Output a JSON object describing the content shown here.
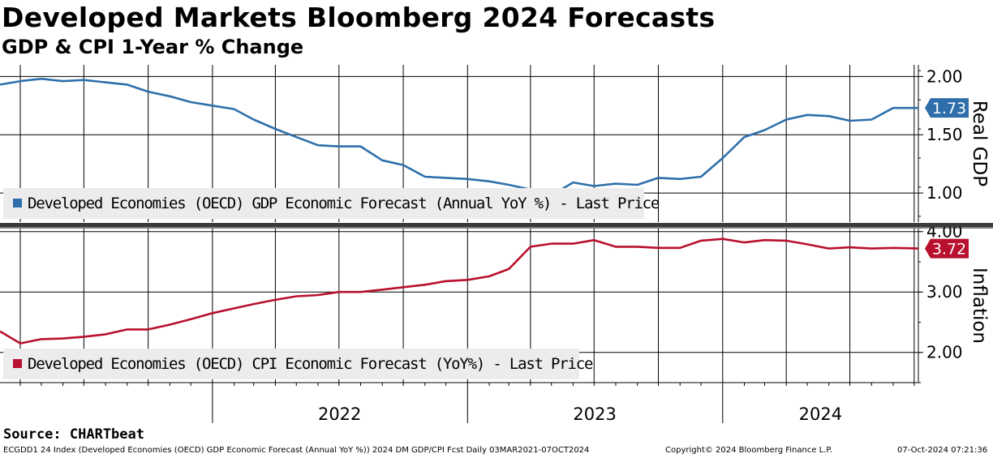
{
  "header": {
    "title": "Developed Markets Bloomberg 2024 Forecasts",
    "subtitle": "GDP & CPI 1-Year % Change"
  },
  "colors": {
    "gdp": "#2e6fab",
    "cpi": "#b8102e"
  },
  "chart_data": [
    {
      "type": "line",
      "panel": "top",
      "ylabel": "Real GDP",
      "ylim": [
        0.75,
        2.1
      ],
      "yticks": [
        "2.00",
        "1.50",
        "1.00"
      ],
      "grid": true,
      "legend": "bottom-left",
      "last_value_label": "1.73",
      "series": [
        {
          "name": "Developed Economies (OECD) GDP Economic Forecast (Annual YoY %) - Last Price",
          "x": [
            "2021-03-03",
            "2021-04-01",
            "2021-05-01",
            "2021-06-01",
            "2021-07-01",
            "2021-08-01",
            "2021-09-01",
            "2021-10-01",
            "2021-11-01",
            "2021-12-01",
            "2022-01-01",
            "2022-02-01",
            "2022-03-01",
            "2022-04-01",
            "2022-05-01",
            "2022-06-01",
            "2022-07-01",
            "2022-08-01",
            "2022-09-01",
            "2022-10-01",
            "2022-11-01",
            "2022-12-01",
            "2023-01-01",
            "2023-02-01",
            "2023-03-01",
            "2023-04-01",
            "2023-05-01",
            "2023-06-01",
            "2023-07-01",
            "2023-08-01",
            "2023-09-01",
            "2023-10-01",
            "2023-11-01",
            "2023-12-01",
            "2024-01-01",
            "2024-02-01",
            "2024-03-01",
            "2024-04-01",
            "2024-05-01",
            "2024-06-01",
            "2024-07-01",
            "2024-08-01",
            "2024-09-01",
            "2024-10-07"
          ],
          "y": [
            1.93,
            1.96,
            1.98,
            1.96,
            1.97,
            1.95,
            1.93,
            1.87,
            1.83,
            1.78,
            1.75,
            1.72,
            1.63,
            1.55,
            1.48,
            1.41,
            1.4,
            1.4,
            1.28,
            1.24,
            1.14,
            1.13,
            1.12,
            1.1,
            1.07,
            1.03,
            0.98,
            1.09,
            1.06,
            1.08,
            1.07,
            1.13,
            1.12,
            1.14,
            1.3,
            1.48,
            1.54,
            1.63,
            1.67,
            1.66,
            1.62,
            1.63,
            1.73,
            1.73
          ]
        }
      ]
    },
    {
      "type": "line",
      "panel": "bottom",
      "ylabel": "Inflation",
      "ylim": [
        1.5,
        4.05
      ],
      "yticks": [
        "4.00",
        "3.00",
        "2.00"
      ],
      "grid": true,
      "legend": "bottom-left",
      "last_value_label": "3.72",
      "series": [
        {
          "name": "Developed Economies (OECD) CPI Economic Forecast (YoY%) - Last Price",
          "x": [
            "2021-03-03",
            "2021-04-01",
            "2021-05-01",
            "2021-06-01",
            "2021-07-01",
            "2021-08-01",
            "2021-09-01",
            "2021-10-01",
            "2021-11-01",
            "2021-12-01",
            "2022-01-01",
            "2022-02-01",
            "2022-03-01",
            "2022-04-01",
            "2022-05-01",
            "2022-06-01",
            "2022-07-01",
            "2022-08-01",
            "2022-09-01",
            "2022-10-01",
            "2022-11-01",
            "2022-12-01",
            "2023-01-01",
            "2023-02-01",
            "2023-03-01",
            "2023-04-01",
            "2023-05-01",
            "2023-06-01",
            "2023-07-01",
            "2023-08-01",
            "2023-09-01",
            "2023-10-01",
            "2023-11-01",
            "2023-12-01",
            "2024-01-01",
            "2024-02-01",
            "2024-03-01",
            "2024-04-01",
            "2024-05-01",
            "2024-06-01",
            "2024-07-01",
            "2024-08-01",
            "2024-09-01",
            "2024-10-07"
          ],
          "y": [
            2.35,
            2.15,
            2.22,
            2.23,
            2.26,
            2.3,
            2.38,
            2.38,
            2.46,
            2.55,
            2.65,
            2.73,
            2.8,
            2.87,
            2.93,
            2.95,
            3.0,
            3.0,
            3.04,
            3.08,
            3.12,
            3.18,
            3.2,
            3.26,
            3.38,
            3.75,
            3.8,
            3.8,
            3.86,
            3.75,
            3.75,
            3.73,
            3.73,
            3.85,
            3.88,
            3.82,
            3.86,
            3.85,
            3.79,
            3.72,
            3.74,
            3.72,
            3.73,
            3.72
          ]
        }
      ]
    }
  ],
  "xaxis": {
    "range": [
      "2021-03-03",
      "2024-10-07"
    ],
    "year_labels": [
      {
        "label": "2022",
        "start": "2022-01-01",
        "end": "2022-12-31"
      },
      {
        "label": "2023",
        "start": "2023-01-01",
        "end": "2023-12-31"
      },
      {
        "label": "2024",
        "start": "2024-01-01",
        "end": "2024-10-07"
      }
    ]
  },
  "source": "Source: CHARTbeat",
  "footer": {
    "left": "ECGDD1 24 Index (Developed Economies (OECD) GDP Economic Forecast (Annual YoY %)) 2024 DM GDP/CPI Fcst  Daily 03MAR2021-07OCT2024",
    "center": "Copyright© 2024 Bloomberg Finance L.P.",
    "right": "07-Oct-2024 07:21:36"
  }
}
